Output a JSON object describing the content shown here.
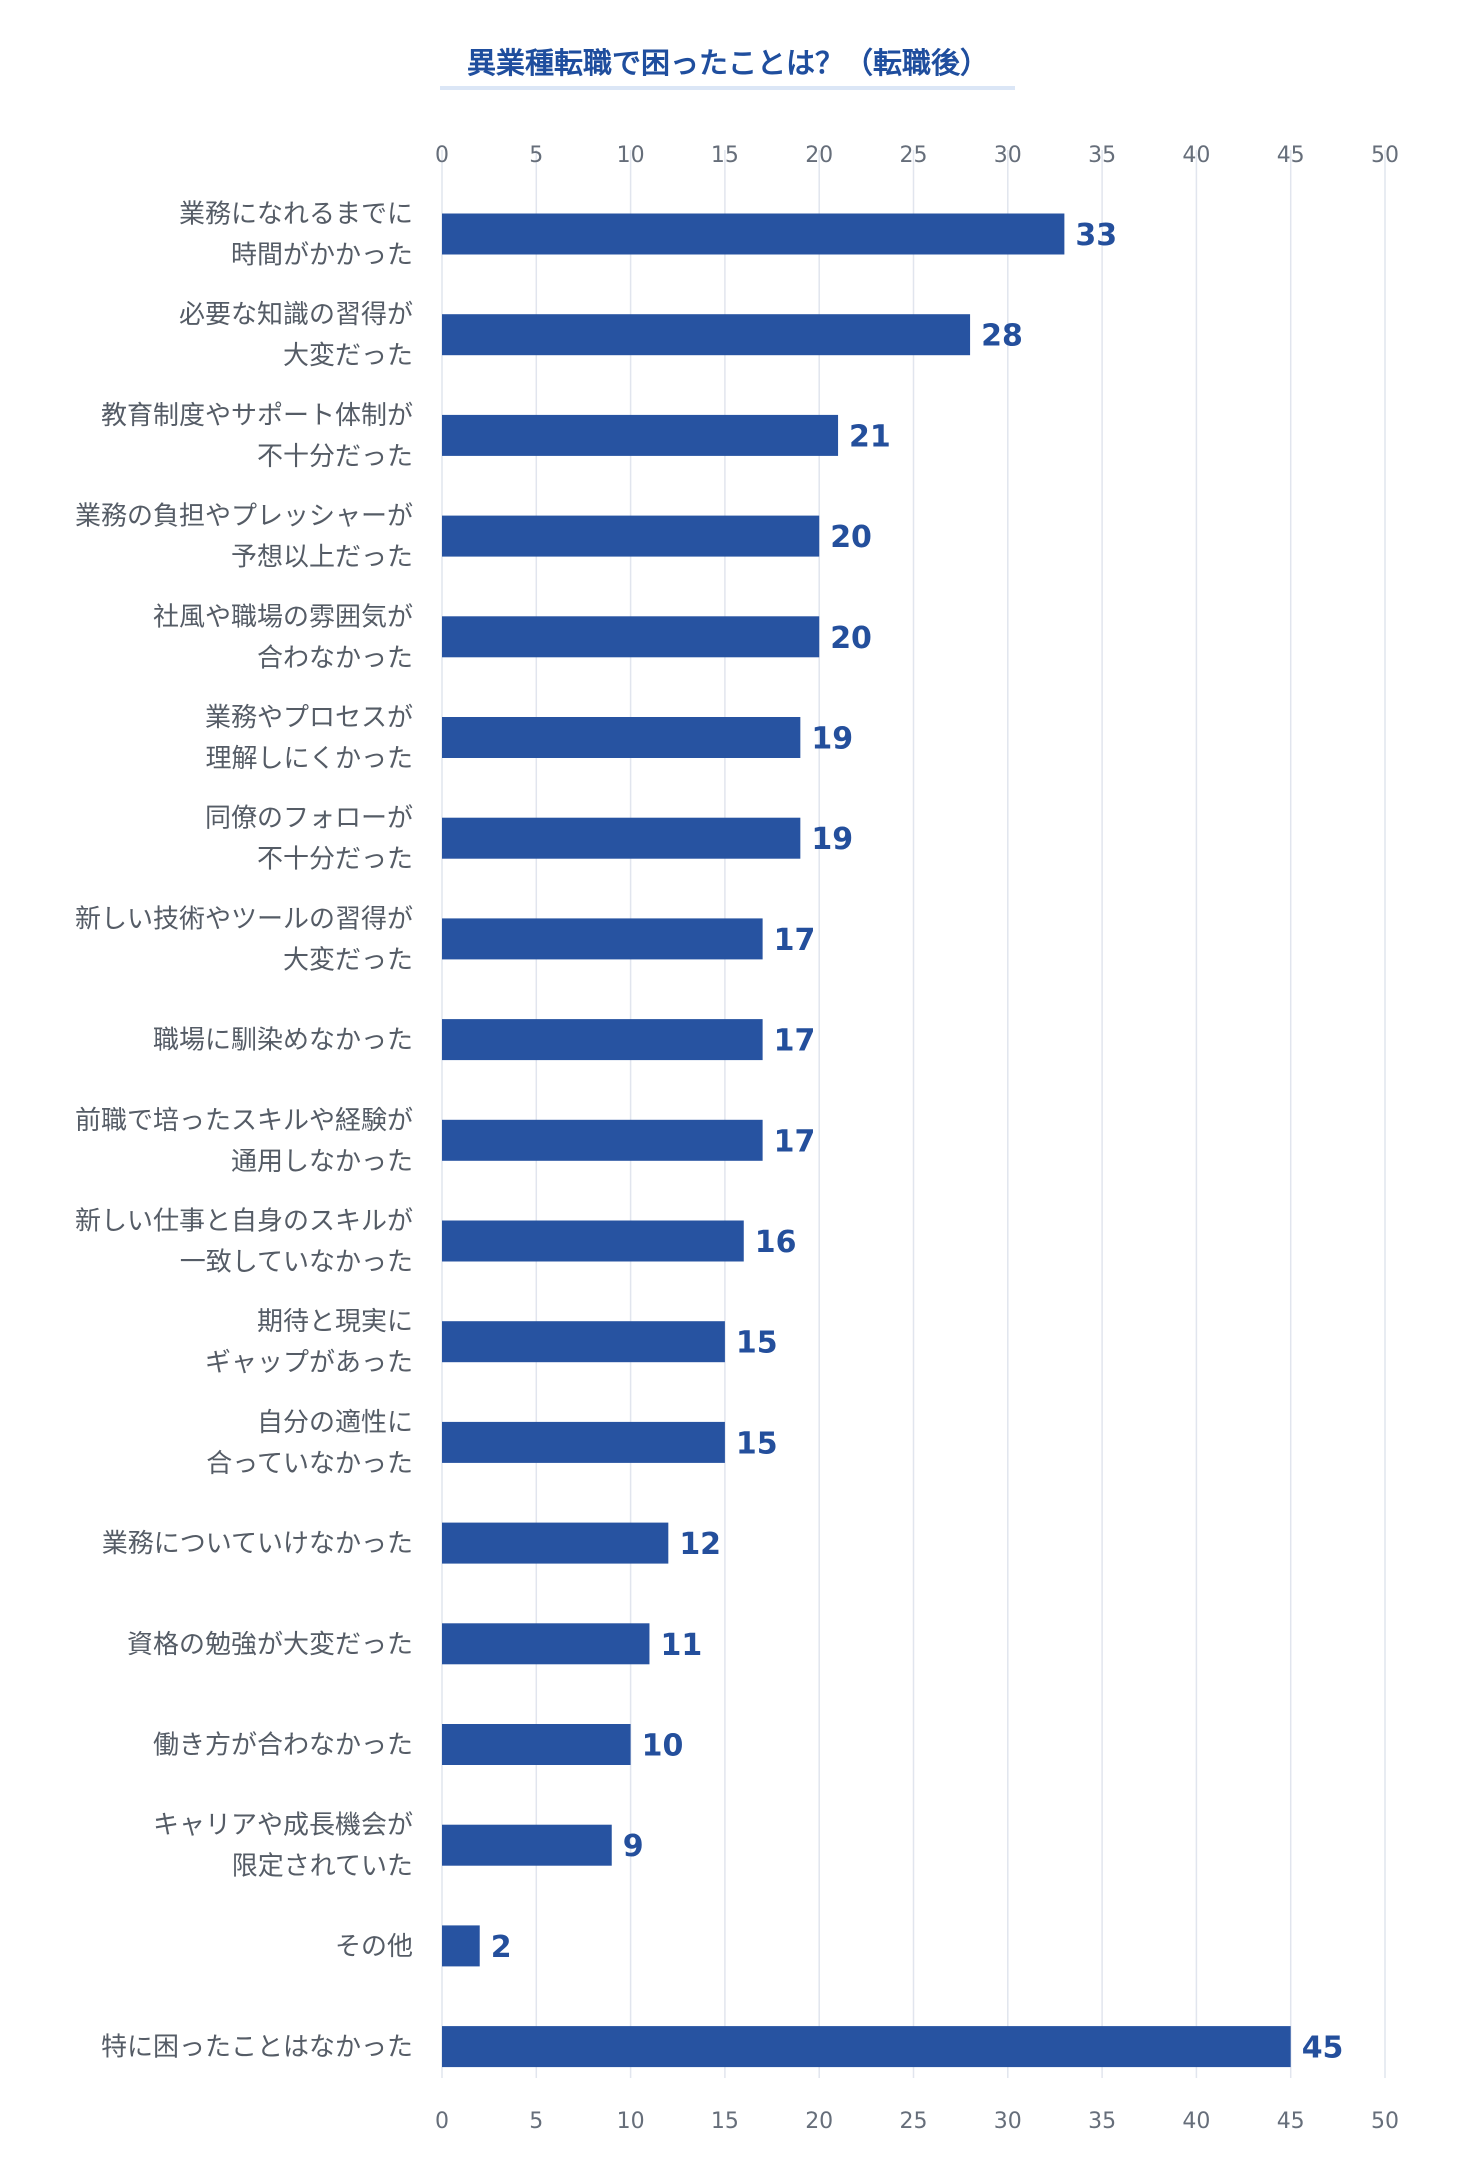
{
  "chart_data": {
    "type": "bar",
    "orientation": "horizontal",
    "title": "異業種転職で困ったことは？（転職後）",
    "xlabel": "",
    "ylabel": "",
    "xlim": [
      0,
      50
    ],
    "ticks": [
      0,
      5,
      10,
      15,
      20,
      25,
      30,
      35,
      40,
      45,
      50
    ],
    "grid": true,
    "legend": "none",
    "bar_color": "#2753a1",
    "categories": [
      [
        "業務になれるまでに",
        "時間がかかった"
      ],
      [
        "必要な知識の習得が",
        "大変だった"
      ],
      [
        "教育制度やサポート体制が",
        "不十分だった"
      ],
      [
        "業務の負担やプレッシャーが",
        "予想以上だった"
      ],
      [
        "社風や職場の雰囲気が",
        "合わなかった"
      ],
      [
        "業務やプロセスが",
        "理解しにくかった"
      ],
      [
        "同僚のフォローが",
        "不十分だった"
      ],
      [
        "新しい技術やツールの習得が",
        "大変だった"
      ],
      [
        "職場に馴染めなかった"
      ],
      [
        "前職で培ったスキルや経験が",
        "通用しなかった"
      ],
      [
        "新しい仕事と自身のスキルが",
        "一致していなかった"
      ],
      [
        "期待と現実に",
        "ギャップがあった"
      ],
      [
        "自分の適性に",
        "合っていなかった"
      ],
      [
        "業務についていけなかった"
      ],
      [
        "資格の勉強が大変だった"
      ],
      [
        "働き方が合わなかった"
      ],
      [
        "キャリアや成長機会が",
        "限定されていた"
      ],
      [
        "その他"
      ],
      [
        "特に困ったことはなかった"
      ]
    ],
    "values": [
      33,
      28,
      21,
      20,
      20,
      19,
      19,
      17,
      17,
      17,
      16,
      15,
      15,
      12,
      11,
      10,
      9,
      2,
      45
    ]
  }
}
